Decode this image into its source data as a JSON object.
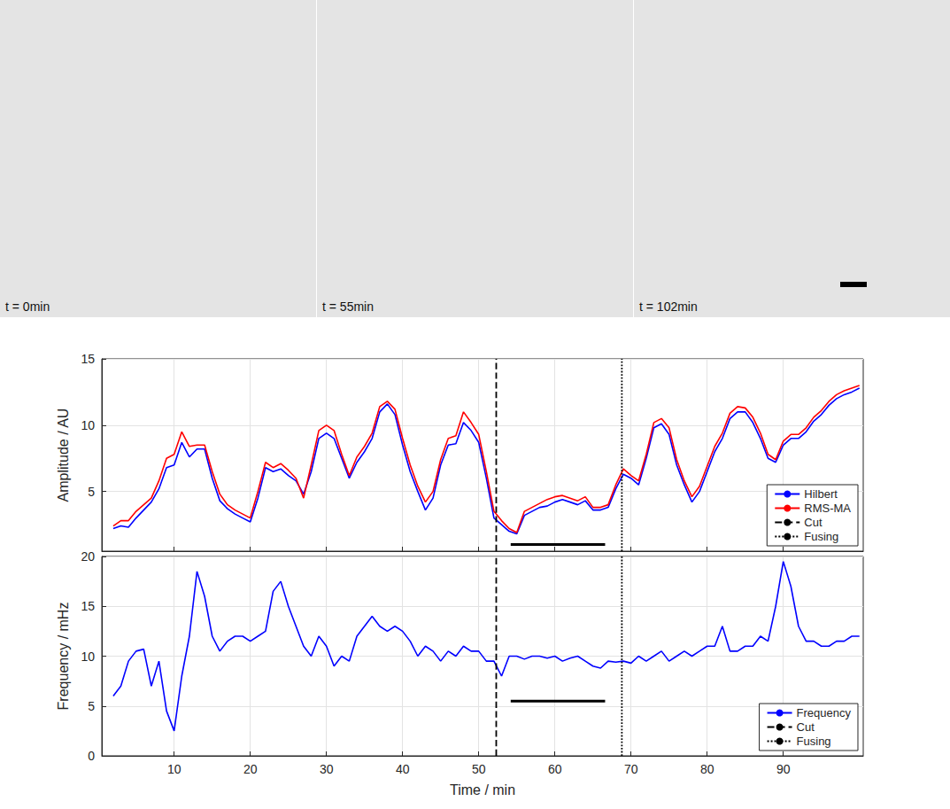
{
  "images": {
    "labels": [
      "t = 0min",
      "t = 55min",
      "t = 102min"
    ]
  },
  "chart_data": [
    {
      "type": "line",
      "ylabel": "Amplitude / AU",
      "xlim": [
        0.5,
        100.5
      ],
      "xticks": [
        10,
        20,
        30,
        40,
        50,
        60,
        70,
        80,
        90
      ],
      "ylim": [
        0.5,
        15
      ],
      "yticks": [
        5,
        10,
        15
      ],
      "grid": true,
      "legend": "lower right",
      "tick_labels": "y",
      "x": [
        2,
        3,
        4,
        5,
        6,
        7,
        8,
        9,
        10,
        11,
        12,
        13,
        14,
        15,
        16,
        17,
        18,
        19,
        20,
        21,
        22,
        23,
        24,
        25,
        26,
        27,
        28,
        29,
        30,
        31,
        32,
        33,
        34,
        35,
        36,
        37,
        38,
        39,
        40,
        41,
        42,
        43,
        44,
        45,
        46,
        47,
        48,
        49,
        50,
        51,
        52,
        53,
        54,
        55,
        56,
        57,
        58,
        59,
        60,
        61,
        62,
        63,
        64,
        65,
        66,
        67,
        68,
        69,
        70,
        71,
        72,
        73,
        74,
        75,
        76,
        77,
        78,
        79,
        80,
        81,
        82,
        83,
        84,
        85,
        86,
        87,
        88,
        89,
        90,
        91,
        92,
        93,
        94,
        95,
        96,
        97,
        98,
        99,
        100
      ],
      "series": [
        {
          "name": "Hilbert",
          "color": "#0000ff",
          "values": [
            2.2,
            2.4,
            2.3,
            3.0,
            3.6,
            4.2,
            5.2,
            6.8,
            7.0,
            8.7,
            7.6,
            8.2,
            8.2,
            6.0,
            4.3,
            3.7,
            3.3,
            3.0,
            2.7,
            4.5,
            6.8,
            6.5,
            6.7,
            6.2,
            5.8,
            4.8,
            6.5,
            9.0,
            9.4,
            9.0,
            7.5,
            6.0,
            7.2,
            8.0,
            9.0,
            11.0,
            11.6,
            10.8,
            8.5,
            6.5,
            5.0,
            3.6,
            4.5,
            7.0,
            8.5,
            8.6,
            10.2,
            9.6,
            8.7,
            6.0,
            3.0,
            2.5,
            2.0,
            1.8,
            3.2,
            3.5,
            3.8,
            3.9,
            4.2,
            4.4,
            4.2,
            4.0,
            4.3,
            3.6,
            3.6,
            3.8,
            5.2,
            6.3,
            6.0,
            5.5,
            7.5,
            9.8,
            10.1,
            9.3,
            7.0,
            5.5,
            4.2,
            5.0,
            6.5,
            8.0,
            9.0,
            10.5,
            11.0,
            11.0,
            10.2,
            9.0,
            7.5,
            7.2,
            8.5,
            9.0,
            9.0,
            9.5,
            10.3,
            10.8,
            11.5,
            12.0,
            12.3,
            12.5,
            12.8
          ]
        },
        {
          "name": "RMS-MA",
          "color": "#ff0000",
          "values": [
            2.4,
            2.8,
            2.8,
            3.5,
            4.0,
            4.5,
            5.8,
            7.5,
            7.8,
            9.5,
            8.4,
            8.5,
            8.5,
            6.5,
            4.8,
            4.0,
            3.6,
            3.3,
            3.0,
            5.0,
            7.2,
            6.8,
            7.1,
            6.6,
            6.0,
            4.5,
            7.0,
            9.6,
            10.0,
            9.6,
            7.8,
            6.2,
            7.6,
            8.4,
            9.4,
            11.4,
            11.8,
            11.2,
            9.0,
            7.0,
            5.4,
            4.2,
            5.0,
            7.4,
            9.0,
            9.2,
            11.0,
            10.2,
            9.3,
            6.5,
            3.5,
            2.8,
            2.2,
            1.9,
            3.5,
            3.8,
            4.1,
            4.4,
            4.6,
            4.7,
            4.5,
            4.3,
            4.6,
            3.8,
            3.8,
            4.0,
            5.5,
            6.7,
            6.2,
            5.8,
            7.8,
            10.2,
            10.5,
            9.8,
            7.4,
            5.8,
            4.6,
            5.4,
            6.9,
            8.4,
            9.4,
            10.9,
            11.4,
            11.3,
            10.6,
            9.4,
            7.8,
            7.4,
            8.8,
            9.3,
            9.3,
            9.8,
            10.6,
            11.1,
            11.8,
            12.3,
            12.6,
            12.8,
            13.0
          ]
        },
        {
          "name": "Cut",
          "type": "vline",
          "x": 52.3,
          "color": "#000000",
          "line_style": "dashed"
        },
        {
          "name": "Fusing",
          "type": "vline",
          "x": 68.8,
          "color": "#000000",
          "line_style": "dotted"
        }
      ],
      "segments": [
        {
          "x": [
            54.2,
            66.6
          ],
          "y": 1.0
        }
      ]
    },
    {
      "type": "line",
      "ylabel": "Frequency / mHz",
      "xlabel": "Time / min",
      "xlim": [
        0.5,
        100.5
      ],
      "xticks": [
        10,
        20,
        30,
        40,
        50,
        60,
        70,
        80,
        90
      ],
      "ylim": [
        0,
        20
      ],
      "yticks": [
        0,
        5,
        10,
        15,
        20
      ],
      "grid": true,
      "legend": "lower right",
      "tick_labels": true,
      "x": [
        2,
        3,
        4,
        5,
        6,
        7,
        8,
        9,
        10,
        11,
        12,
        13,
        14,
        15,
        16,
        17,
        18,
        19,
        20,
        21,
        22,
        23,
        24,
        25,
        26,
        27,
        28,
        29,
        30,
        31,
        32,
        33,
        34,
        35,
        36,
        37,
        38,
        39,
        40,
        41,
        42,
        43,
        44,
        45,
        46,
        47,
        48,
        49,
        50,
        51,
        52,
        53,
        54,
        55,
        56,
        57,
        58,
        59,
        60,
        61,
        62,
        63,
        64,
        65,
        66,
        67,
        68,
        69,
        70,
        71,
        72,
        73,
        74,
        75,
        76,
        77,
        78,
        79,
        80,
        81,
        82,
        83,
        84,
        85,
        86,
        87,
        88,
        89,
        90,
        91,
        92,
        93,
        94,
        95,
        96,
        97,
        98,
        99,
        100
      ],
      "series": [
        {
          "name": "Frequency",
          "color": "#0000ff",
          "values": [
            6,
            7,
            9.5,
            10.5,
            10.7,
            7,
            9.5,
            4.5,
            2.5,
            8,
            12,
            18.5,
            16,
            12,
            10.5,
            11.5,
            12,
            12,
            11.5,
            12,
            12.5,
            16.5,
            17.5,
            15,
            13,
            11,
            10,
            12,
            11,
            9,
            10,
            9.5,
            12,
            13,
            14,
            13,
            12.5,
            13,
            12.5,
            11.5,
            10,
            11,
            10.5,
            9.5,
            10.5,
            10,
            11,
            10.5,
            10.5,
            9.5,
            9.5,
            8,
            10,
            10,
            9.7,
            10,
            10,
            9.8,
            10,
            9.5,
            9.8,
            10,
            9.5,
            9,
            8.8,
            9.5,
            9.4,
            9.5,
            9.3,
            10,
            9.5,
            10,
            10.5,
            9.5,
            10,
            10.5,
            10,
            10.5,
            11,
            11,
            13,
            10.5,
            10.5,
            11,
            11,
            12,
            11.5,
            15,
            19.5,
            17,
            13,
            11.5,
            11.5,
            11,
            11,
            11.5,
            11.5,
            12,
            12
          ]
        },
        {
          "name": "Cut",
          "type": "vline",
          "x": 52.3,
          "color": "#000000",
          "line_style": "dashed"
        },
        {
          "name": "Fusing",
          "type": "vline",
          "x": 68.8,
          "color": "#000000",
          "line_style": "dotted"
        }
      ],
      "segments": [
        {
          "x": [
            54.2,
            66.6
          ],
          "y": 5.5
        }
      ]
    }
  ]
}
